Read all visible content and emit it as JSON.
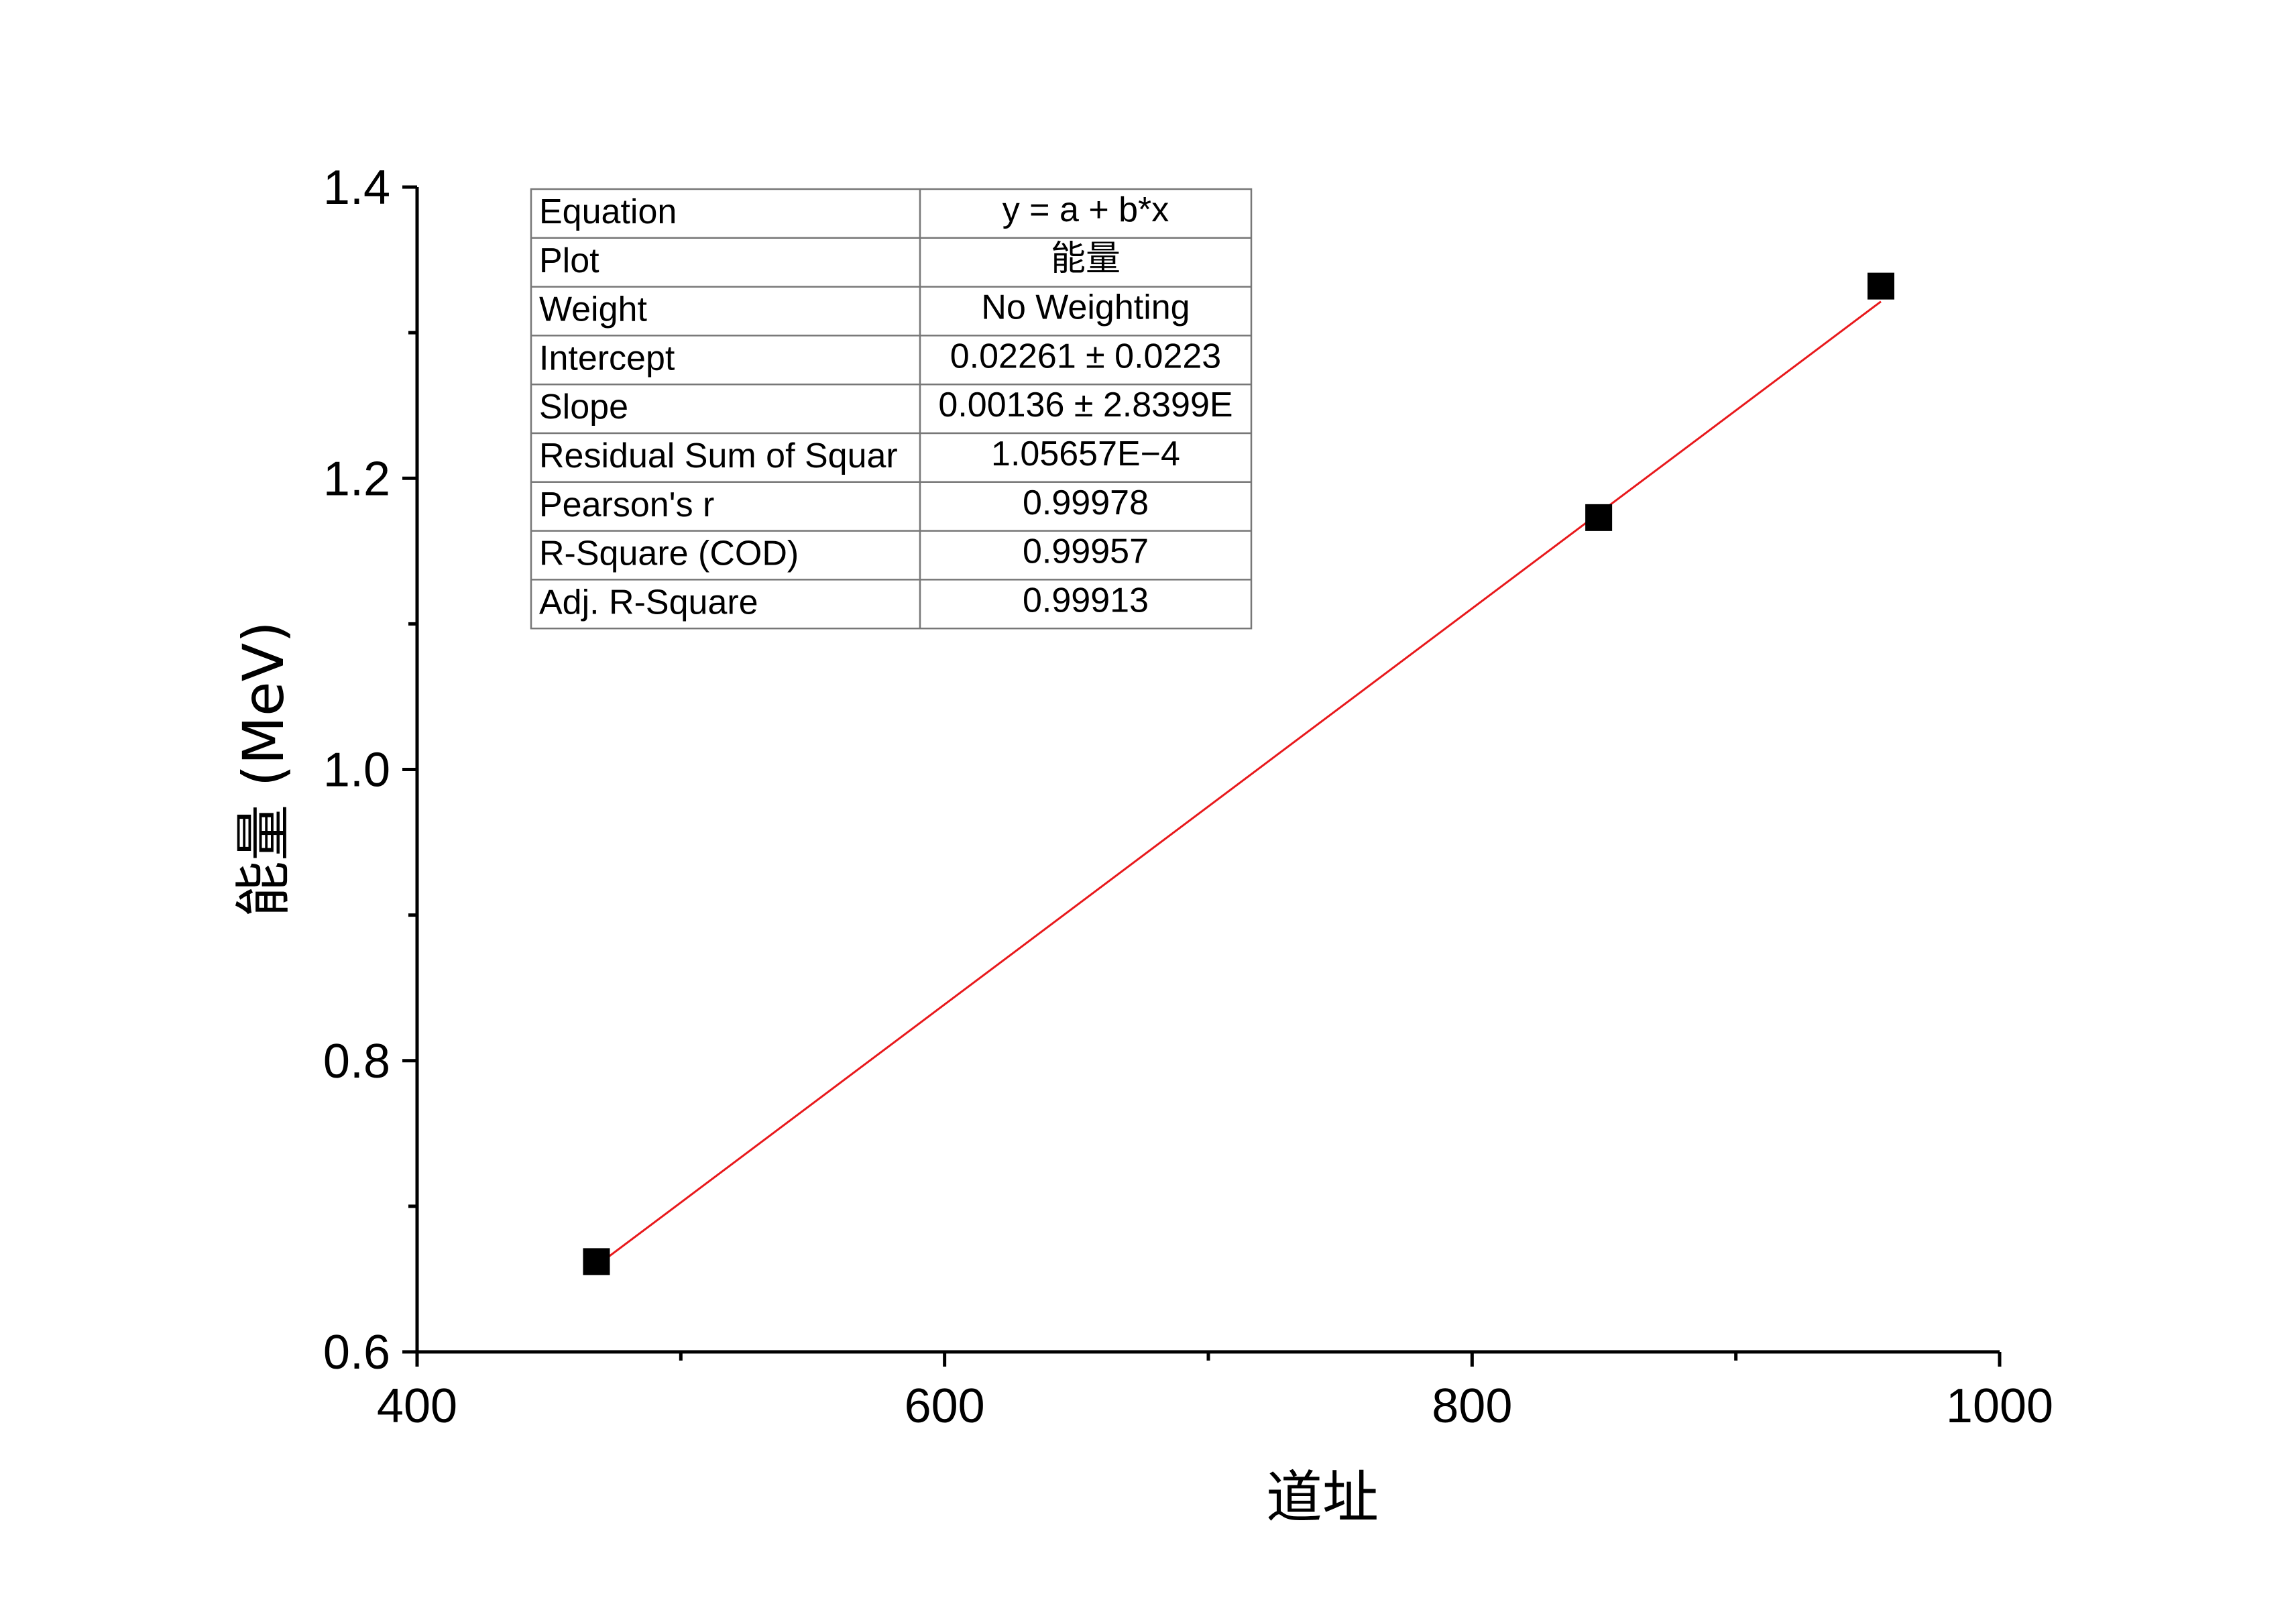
{
  "chart_data": {
    "type": "scatter",
    "xlabel": "道址",
    "ylabel": "能量 (MeV)",
    "xlim": [
      400,
      1000
    ],
    "ylim": [
      0.6,
      1.4
    ],
    "x_ticks": [
      {
        "value": 400,
        "label": "400"
      },
      {
        "value": 600,
        "label": "600"
      },
      {
        "value": 800,
        "label": "800"
      },
      {
        "value": 1000,
        "label": "1000"
      }
    ],
    "x_minor_ticks": [
      500,
      700,
      900
    ],
    "y_ticks": [
      {
        "value": 0.6,
        "label": "0.6"
      },
      {
        "value": 0.8,
        "label": "0.8"
      },
      {
        "value": 1.0,
        "label": "1.0"
      },
      {
        "value": 1.2,
        "label": "1.2"
      },
      {
        "value": 1.4,
        "label": "1.4"
      }
    ],
    "y_minor_ticks": [
      0.7,
      0.9,
      1.1,
      1.3
    ],
    "grid": false,
    "series": [
      {
        "name": "能量",
        "marker": "square",
        "color": "#000000",
        "points": [
          {
            "x": 468,
            "y": 0.662
          },
          {
            "x": 848,
            "y": 1.173
          },
          {
            "x": 955,
            "y": 1.332
          }
        ]
      }
    ],
    "fit_line": {
      "color": "#e8191c",
      "intercept": 0.02261,
      "slope": 0.00136,
      "x_range": [
        468,
        955
      ]
    },
    "fit_table": {
      "placement": "top-left",
      "rows": [
        {
          "label": "Equation",
          "value": "y = a + b*x"
        },
        {
          "label": "Plot",
          "value": "能量"
        },
        {
          "label": "Weight",
          "value": "No Weighting"
        },
        {
          "label": "Intercept",
          "value": "0.02261 ± 0.0223"
        },
        {
          "label": "Slope",
          "value": "0.00136 ± 2.8399E"
        },
        {
          "label": "Residual Sum of Squar",
          "value": "1.05657E−4"
        },
        {
          "label": "Pearson's r",
          "value": "0.99978"
        },
        {
          "label": "R-Square (COD)",
          "value": "0.99957"
        },
        {
          "label": "Adj. R-Square",
          "value": "0.99913"
        }
      ]
    }
  }
}
